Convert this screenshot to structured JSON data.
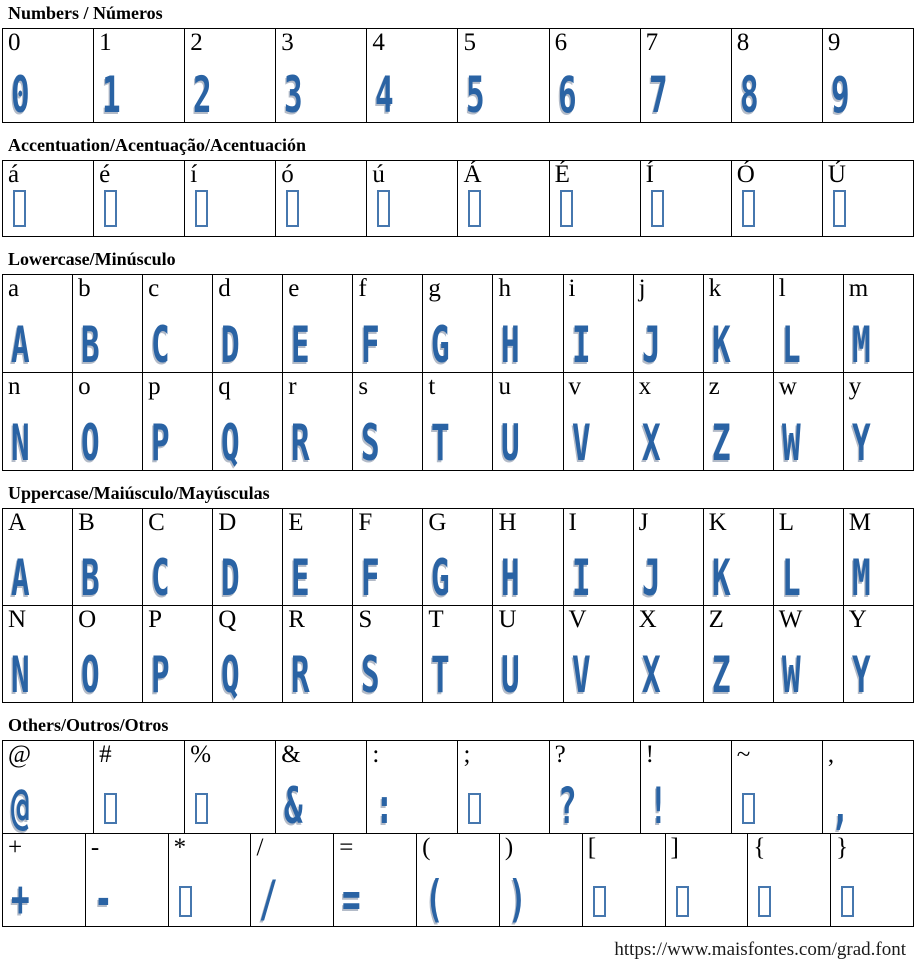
{
  "page": {
    "footer_url": "https://www.maisfontes.com/grad.font",
    "colors": {
      "glyph_blue": "#2a63a4",
      "glyph_shadow": "#b3bbc8",
      "missing_box_border": "#4677ae",
      "table_border": "#000000",
      "background": "#ffffff"
    }
  },
  "sections": [
    {
      "id": "numbers",
      "title": "Numbers / Números",
      "unicase": false,
      "rows": [
        [
          {
            "label": "0"
          },
          {
            "label": "1"
          },
          {
            "label": "2"
          },
          {
            "label": "3"
          },
          {
            "label": "4"
          },
          {
            "label": "5"
          },
          {
            "label": "6"
          },
          {
            "label": "7"
          },
          {
            "label": "8"
          },
          {
            "label": "9"
          }
        ]
      ]
    },
    {
      "id": "accentuation",
      "title": "Accentuation/Acentuação/Acentuación",
      "unicase": false,
      "rows": [
        [
          {
            "label": "á",
            "missing": true
          },
          {
            "label": "é",
            "missing": true
          },
          {
            "label": "í",
            "missing": true
          },
          {
            "label": "ó",
            "missing": true
          },
          {
            "label": "ú",
            "missing": true
          },
          {
            "label": "Á",
            "missing": true
          },
          {
            "label": "É",
            "missing": true
          },
          {
            "label": "Í",
            "missing": true
          },
          {
            "label": "Ó",
            "missing": true
          },
          {
            "label": "Ú",
            "missing": true
          }
        ]
      ]
    },
    {
      "id": "lowercase",
      "title": "Lowercase/Minúsculo",
      "unicase": true,
      "rows": [
        [
          {
            "label": "a"
          },
          {
            "label": "b"
          },
          {
            "label": "c"
          },
          {
            "label": "d"
          },
          {
            "label": "e"
          },
          {
            "label": "f"
          },
          {
            "label": "g"
          },
          {
            "label": "h"
          },
          {
            "label": "i"
          },
          {
            "label": "j"
          },
          {
            "label": "k"
          },
          {
            "label": "l"
          },
          {
            "label": "m"
          }
        ],
        [
          {
            "label": "n"
          },
          {
            "label": "o"
          },
          {
            "label": "p"
          },
          {
            "label": "q"
          },
          {
            "label": "r"
          },
          {
            "label": "s"
          },
          {
            "label": "t"
          },
          {
            "label": "u"
          },
          {
            "label": "v"
          },
          {
            "label": "x"
          },
          {
            "label": "z"
          },
          {
            "label": "w"
          },
          {
            "label": "y"
          }
        ]
      ]
    },
    {
      "id": "uppercase",
      "title": "Uppercase/Maiúsculo/Mayúsculas",
      "unicase": true,
      "rows": [
        [
          {
            "label": "A"
          },
          {
            "label": "B"
          },
          {
            "label": "C"
          },
          {
            "label": "D"
          },
          {
            "label": "E"
          },
          {
            "label": "F"
          },
          {
            "label": "G"
          },
          {
            "label": "H"
          },
          {
            "label": "I"
          },
          {
            "label": "J"
          },
          {
            "label": "K"
          },
          {
            "label": "L"
          },
          {
            "label": "M"
          }
        ],
        [
          {
            "label": "N"
          },
          {
            "label": "O"
          },
          {
            "label": "P"
          },
          {
            "label": "Q"
          },
          {
            "label": "R"
          },
          {
            "label": "S"
          },
          {
            "label": "T"
          },
          {
            "label": "U"
          },
          {
            "label": "V"
          },
          {
            "label": "X"
          },
          {
            "label": "Z"
          },
          {
            "label": "W"
          },
          {
            "label": "Y"
          }
        ]
      ]
    },
    {
      "id": "others",
      "title": "Others/Outros/Otros",
      "unicase": false,
      "rows": [
        [
          {
            "label": "@"
          },
          {
            "label": "#",
            "missing": true
          },
          {
            "label": "%",
            "missing": true
          },
          {
            "label": "&"
          },
          {
            "label": ":"
          },
          {
            "label": ";",
            "missing": true
          },
          {
            "label": "?"
          },
          {
            "label": "!"
          },
          {
            "label": "~",
            "missing": true
          },
          {
            "label": ","
          }
        ],
        [
          {
            "label": "+"
          },
          {
            "label": "-"
          },
          {
            "label": "*",
            "missing": true
          },
          {
            "label": "/"
          },
          {
            "label": "="
          },
          {
            "label": "("
          },
          {
            "label": ")"
          },
          {
            "label": "[",
            "missing": true
          },
          {
            "label": "]",
            "missing": true
          },
          {
            "label": "{",
            "missing": true
          },
          {
            "label": "}",
            "missing": true
          }
        ]
      ]
    }
  ]
}
